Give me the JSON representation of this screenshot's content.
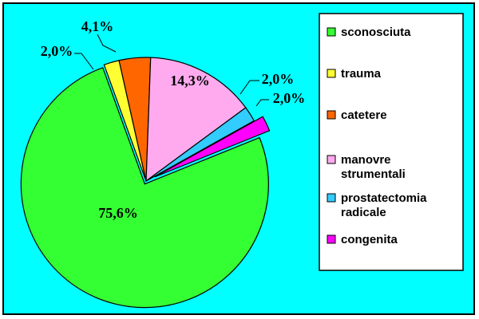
{
  "chart_data": {
    "type": "pie",
    "categories": [
      "sconosciuta",
      "trauma",
      "catetere",
      "manovre strumentali",
      "prostatectomia radicale",
      "congenita"
    ],
    "values": [
      75.6,
      2.0,
      4.1,
      14.3,
      2.0,
      2.0
    ],
    "labels": [
      "75,6%",
      "2,0%",
      "4,1%",
      "14,3%",
      "2,0%",
      "2,0%"
    ],
    "colors": [
      "#33ff33",
      "#ffff33",
      "#ff6600",
      "#ffaaee",
      "#33ccff",
      "#ff00ff"
    ],
    "legend_lines": [
      [
        "sconosciuta"
      ],
      [
        "trauma"
      ],
      [
        "catetere"
      ],
      [
        "manovre",
        "strumentali"
      ],
      [
        "prostatectomia",
        "radicale"
      ],
      [
        "congenita"
      ]
    ],
    "legend_position": "right",
    "exploded_slices": [
      "sconosciuta",
      "congenita"
    ],
    "background": "#00ffff"
  }
}
